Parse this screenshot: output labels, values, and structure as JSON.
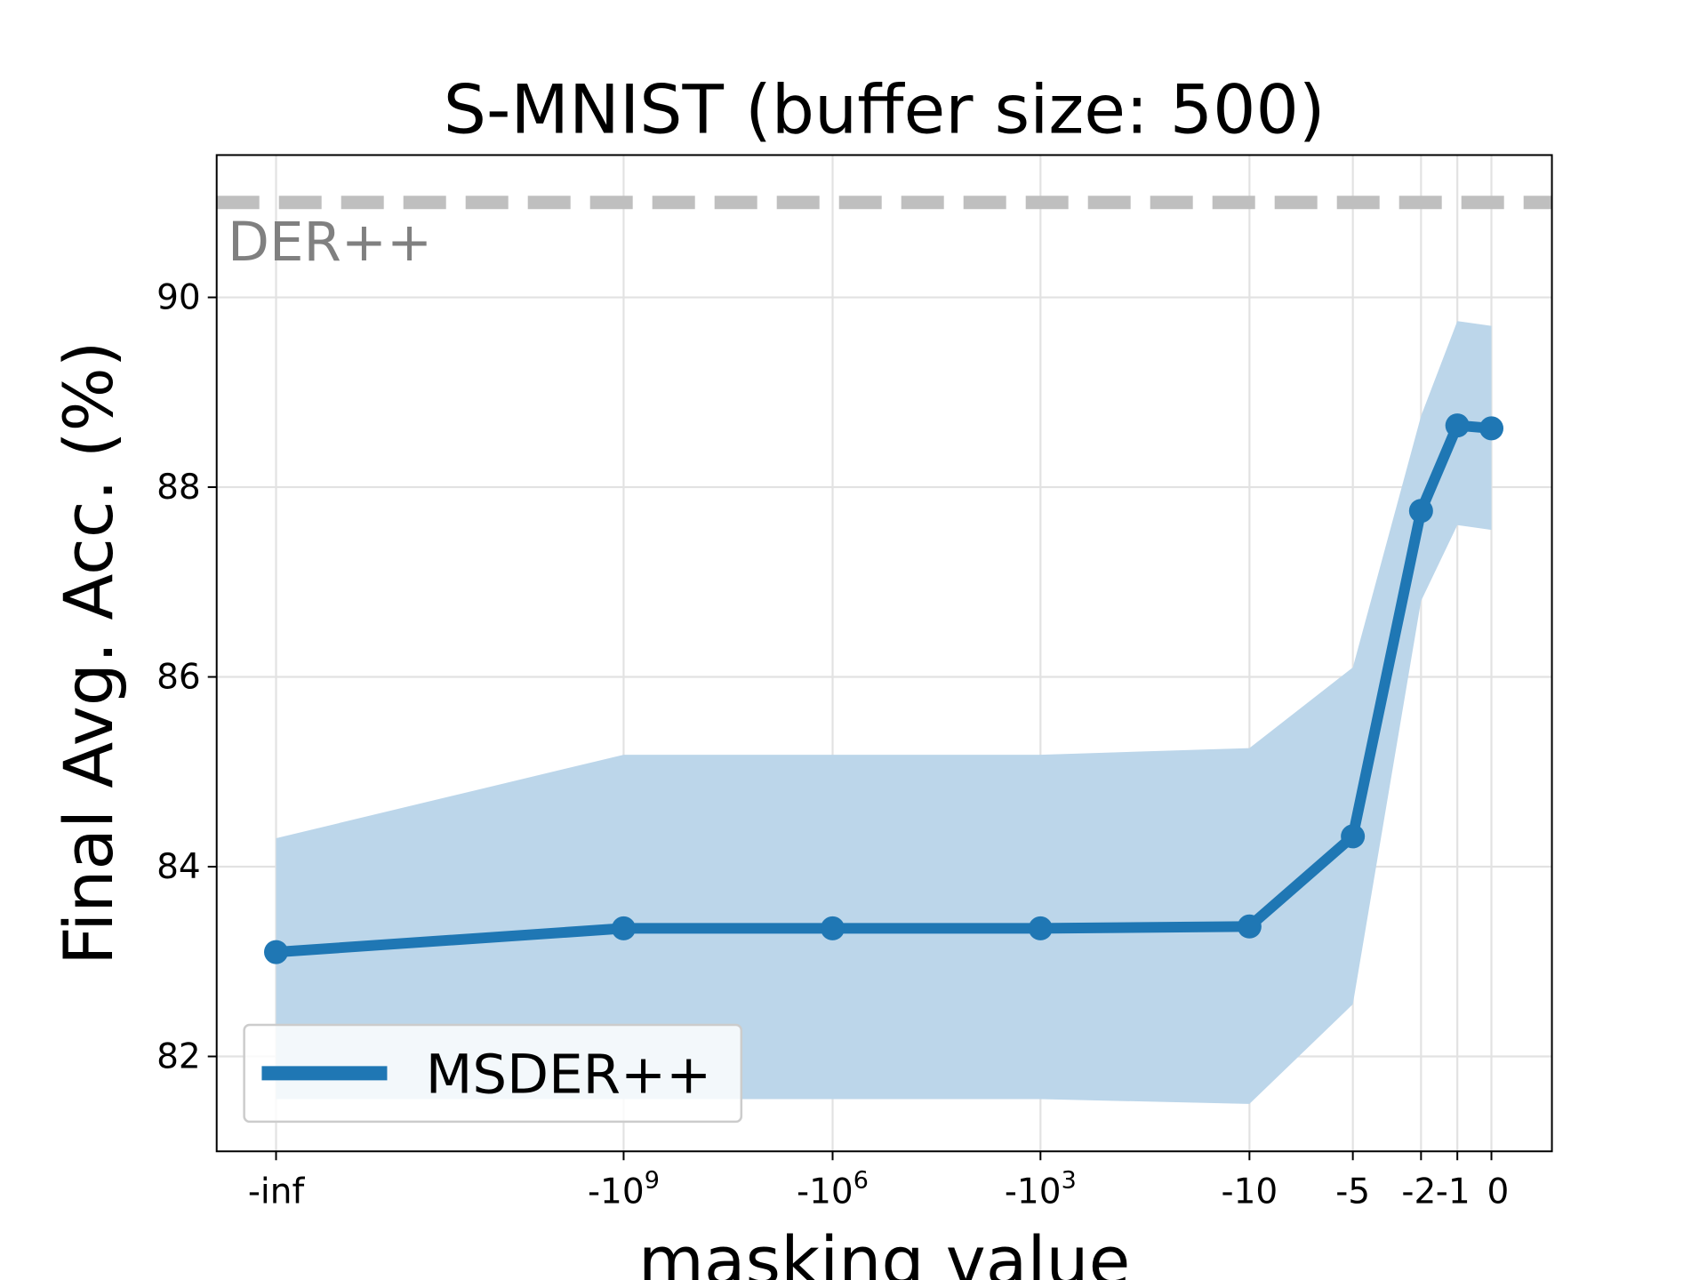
{
  "chart_data": {
    "type": "line",
    "title": "S-MNIST (buffer size: 500)",
    "xlabel": "masking value",
    "ylabel": "Final Avg. Acc. (%)",
    "ylim": [
      81.0,
      91.5
    ],
    "yticks": [
      82,
      84,
      86,
      88,
      90
    ],
    "ytick_labels": [
      "82",
      "84",
      "86",
      "88",
      "90"
    ],
    "x_categories": [
      {
        "base": "-inf",
        "sup": ""
      },
      {
        "base": "-10",
        "sup": "9"
      },
      {
        "base": "-10",
        "sup": "6"
      },
      {
        "base": "-10",
        "sup": "3"
      },
      {
        "base": "-10",
        "sup": ""
      },
      {
        "base": "-5",
        "sup": ""
      },
      {
        "base": "-2",
        "sup": ""
      },
      {
        "base": "-1",
        "sup": ""
      },
      {
        "base": "0",
        "sup": ""
      }
    ],
    "grid": true,
    "legend_position": "lower-left",
    "series": [
      {
        "name": "MSDER++",
        "color": "#1f77b4",
        "values": [
          83.1,
          83.35,
          83.35,
          83.35,
          83.37,
          84.32,
          87.75,
          88.65,
          88.62
        ],
        "band_upper": [
          84.3,
          85.18,
          85.18,
          85.18,
          85.25,
          86.1,
          88.75,
          89.75,
          89.7
        ],
        "band_lower": [
          81.55,
          81.55,
          81.55,
          81.55,
          81.5,
          82.55,
          86.8,
          87.6,
          87.55
        ],
        "band_color": "#bcd6ea"
      }
    ],
    "reference": {
      "label": "DER++",
      "value": 91.0,
      "color": "#bfbfbf",
      "label_color": "#808080"
    }
  }
}
